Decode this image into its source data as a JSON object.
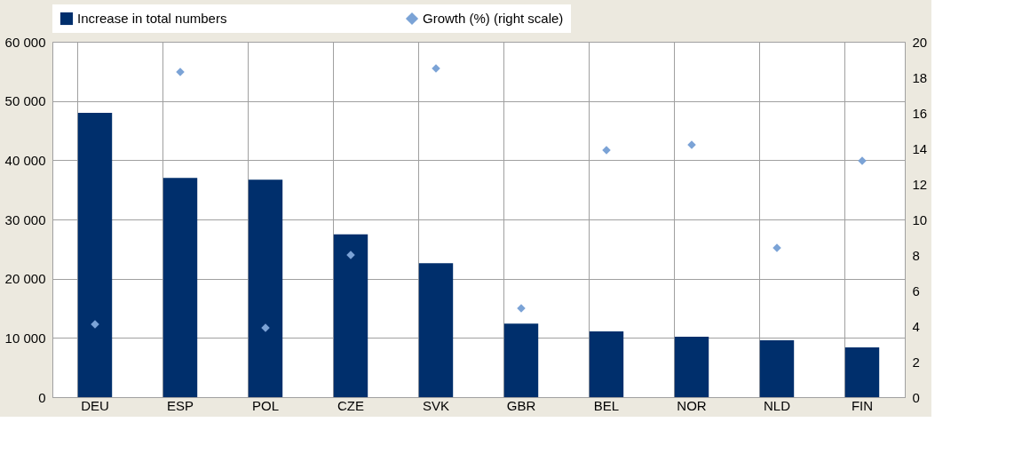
{
  "chart_data": {
    "type": "bar",
    "categories": [
      "DEU",
      "ESP",
      "POL",
      "CZE",
      "SVK",
      "GBR",
      "BEL",
      "NOR",
      "NLD",
      "FIN"
    ],
    "series": [
      {
        "name": "Increase in total numbers",
        "type": "bar",
        "color": "#002f6c",
        "values": [
          48000,
          37000,
          36700,
          27500,
          22600,
          12400,
          11100,
          10200,
          9600,
          8400
        ]
      },
      {
        "name": "Growth (%) (right scale)",
        "type": "scatter",
        "axis": "y2",
        "marker": "diamond",
        "color": "#7ba3d6",
        "values": [
          4.1,
          18.3,
          3.9,
          8.0,
          18.5,
          5.0,
          13.9,
          14.2,
          8.4,
          13.3
        ]
      }
    ],
    "ylim": [
      0,
      60000
    ],
    "yticks": [
      0,
      {
        "value": 10000,
        "label": "10 000"
      },
      {
        "value": 20000,
        "label": "20 000"
      },
      {
        "value": 30000,
        "label": "30 000"
      },
      {
        "value": 40000,
        "label": "40 000"
      },
      {
        "value": 50000,
        "label": "50 000"
      },
      {
        "value": 60000,
        "label": "60 000"
      }
    ],
    "y2lim": [
      0,
      20
    ],
    "y2ticks": [
      0,
      2,
      4,
      6,
      8,
      10,
      12,
      14,
      16,
      18,
      20
    ],
    "grid": true,
    "legend": "top"
  }
}
